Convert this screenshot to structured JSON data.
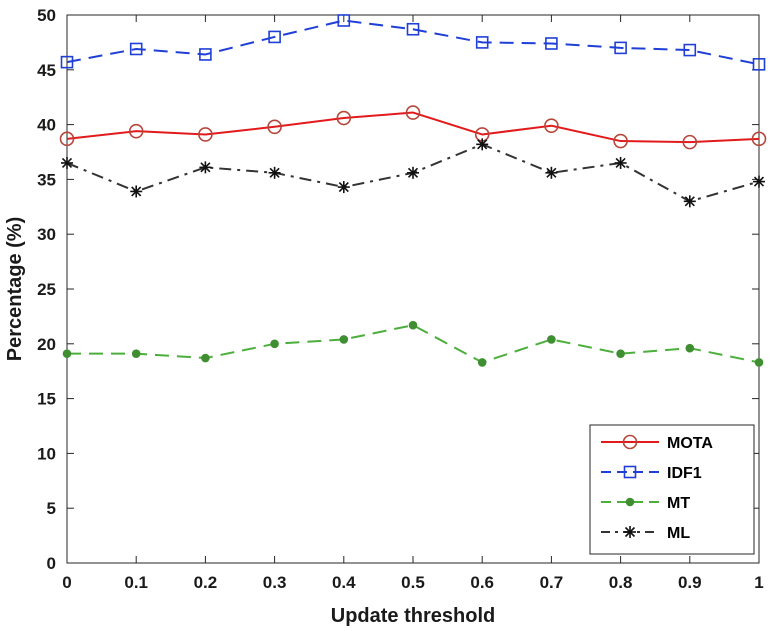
{
  "chart_data": {
    "type": "line",
    "title": "",
    "xlabel": "Update threshold",
    "ylabel": "Percentage (%)",
    "xlim": [
      0,
      1
    ],
    "ylim": [
      0,
      50
    ],
    "grid": false,
    "legend_position": "bottom-right",
    "x": [
      0,
      0.1,
      0.2,
      0.3,
      0.4,
      0.5,
      0.6,
      0.7,
      0.8,
      0.9,
      1
    ],
    "x_tick_labels": [
      "0",
      "0.1",
      "0.2",
      "0.3",
      "0.4",
      "0.5",
      "0.6",
      "0.7",
      "0.8",
      "0.9",
      "1"
    ],
    "y_ticks": [
      0,
      5,
      10,
      15,
      20,
      25,
      30,
      35,
      40,
      45,
      50
    ],
    "y_tick_labels": [
      "0",
      "5",
      "10",
      "15",
      "20",
      "25",
      "30",
      "35",
      "40",
      "45",
      "50"
    ],
    "series": [
      {
        "name": "MOTA",
        "color": "#e31a1c",
        "marker_color": "#b5473a",
        "line_style": "solid",
        "marker": "circle",
        "values": [
          38.7,
          39.4,
          39.1,
          39.8,
          40.6,
          41.1,
          39.1,
          39.9,
          38.5,
          38.4,
          38.7
        ]
      },
      {
        "name": "IDF1",
        "color": "#1f3fd6",
        "marker_color": "#1f3fd6",
        "line_style": "dashed",
        "marker": "square",
        "values": [
          45.7,
          46.9,
          46.4,
          48.0,
          49.5,
          48.7,
          47.5,
          47.4,
          47.0,
          46.8,
          45.5
        ]
      },
      {
        "name": "MT",
        "color": "#4caf3c",
        "marker_color": "#3f8f32",
        "line_style": "dashed",
        "marker": "dot",
        "values": [
          19.1,
          19.1,
          18.7,
          20.0,
          20.4,
          21.7,
          18.3,
          20.4,
          19.1,
          19.6,
          18.3
        ]
      },
      {
        "name": "ML",
        "color": "#333333",
        "marker_color": "#111111",
        "line_style": "dashdot",
        "marker": "asterisk",
        "values": [
          36.5,
          33.9,
          36.1,
          35.6,
          34.3,
          35.6,
          38.2,
          35.6,
          36.5,
          33.0,
          34.8
        ]
      }
    ]
  }
}
